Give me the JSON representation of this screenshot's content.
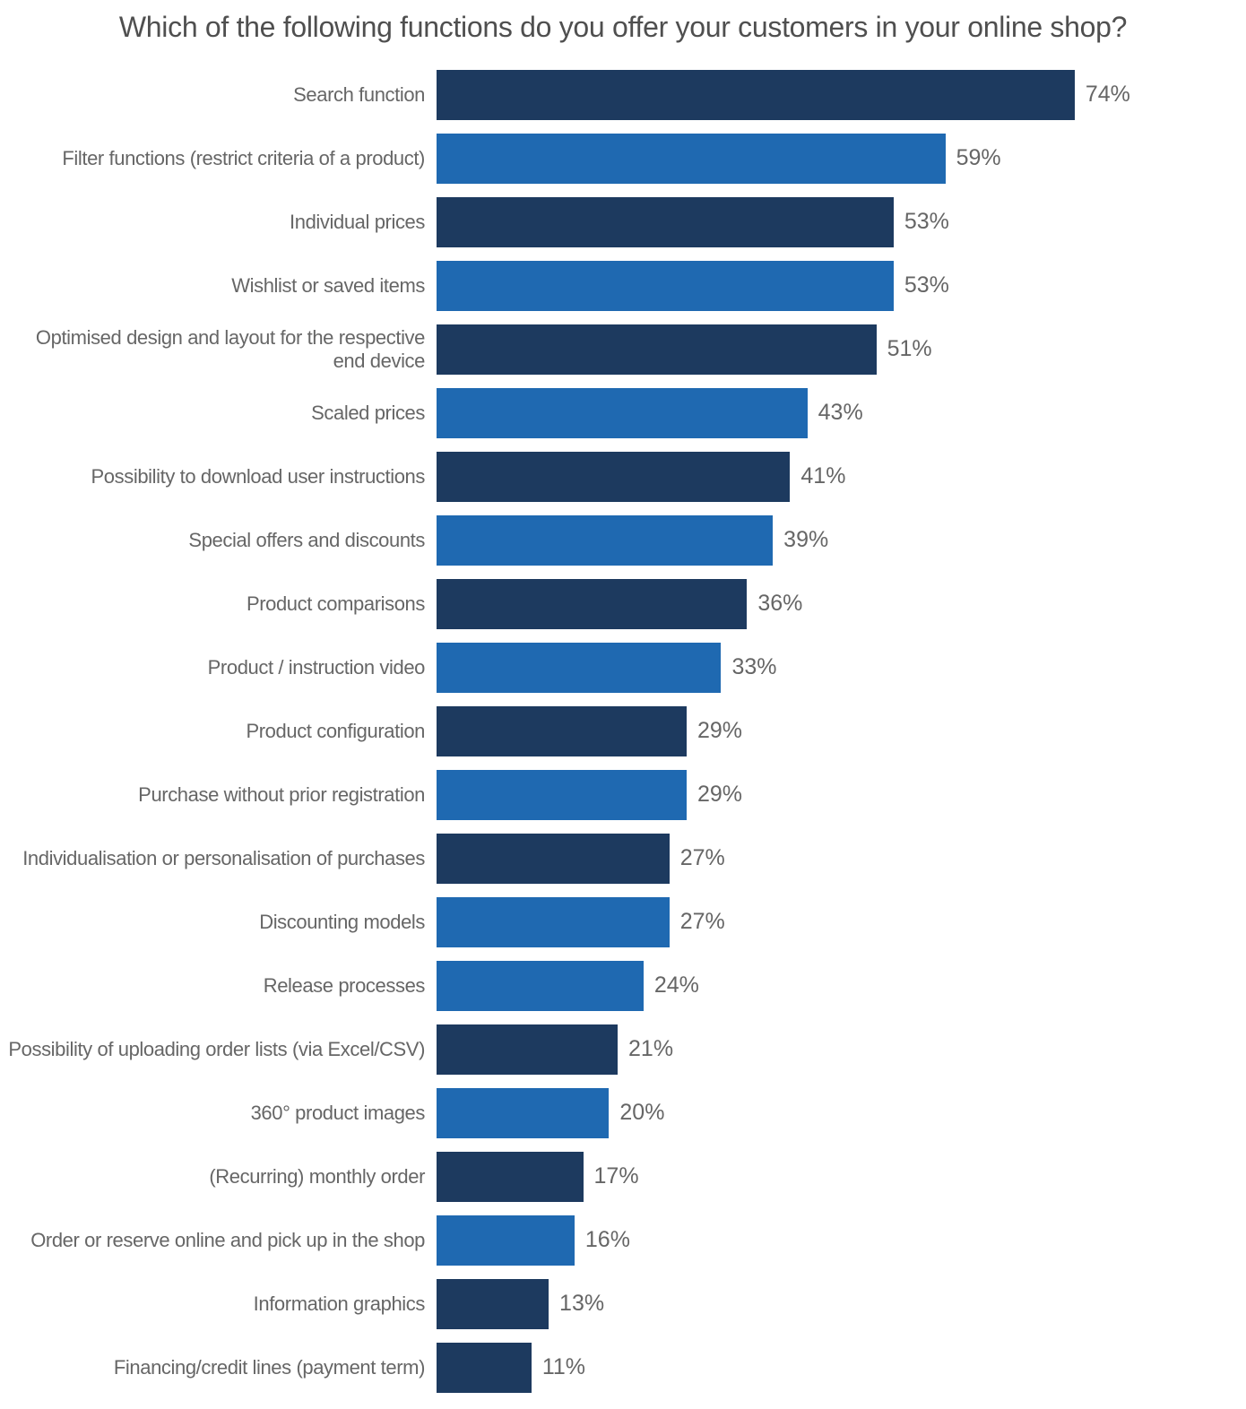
{
  "colors": {
    "navy": "#1d3a5f",
    "blue": "#1f69b1",
    "label_gray": "#666666",
    "title_gray": "#4f4f4f",
    "background": "#ffffff"
  },
  "chart_data": {
    "type": "bar",
    "orientation": "horizontal",
    "title": "Which of the following functions do you offer your customers in your online shop?",
    "xlabel": "",
    "ylabel": "",
    "unit": "%",
    "xlim": [
      0,
      80
    ],
    "grid": false,
    "legend": false,
    "value_label_format": "percent",
    "categories": [
      "Search function",
      "Filter functions (restrict criteria of a product)",
      "Individual prices",
      "Wishlist or saved items",
      "Optimised design and layout for the respective end device",
      "Scaled prices",
      "Possibility to download user instructions",
      "Special offers and discounts",
      "Product comparisons",
      "Product / instruction video",
      "Product configuration",
      "Purchase without prior registration",
      "Individualisation or personalisation of purchases",
      "Discounting models",
      "Release processes",
      "Possibility of uploading order lists (via Excel/CSV)",
      "360° product images",
      "(Recurring) monthly order",
      "Order or reserve online and pick up in the shop",
      "Information graphics",
      "Financing/credit lines (payment term)"
    ],
    "values": [
      74,
      59,
      53,
      53,
      51,
      43,
      41,
      39,
      36,
      33,
      29,
      29,
      27,
      27,
      24,
      21,
      20,
      17,
      16,
      13,
      11
    ],
    "value_labels": [
      "74%",
      "59%",
      "53%",
      "53%",
      "51%",
      "43%",
      "41%",
      "39%",
      "36%",
      "33%",
      "29%",
      "29%",
      "27%",
      "27%",
      "24%",
      "21%",
      "20%",
      "17%",
      "16%",
      "13%",
      "11%"
    ],
    "bar_colors": [
      "navy",
      "blue",
      "navy",
      "blue",
      "navy",
      "blue",
      "navy",
      "blue",
      "navy",
      "blue",
      "navy",
      "blue",
      "navy",
      "blue",
      "blue",
      "navy",
      "blue",
      "navy",
      "blue",
      "navy",
      "navy"
    ]
  }
}
